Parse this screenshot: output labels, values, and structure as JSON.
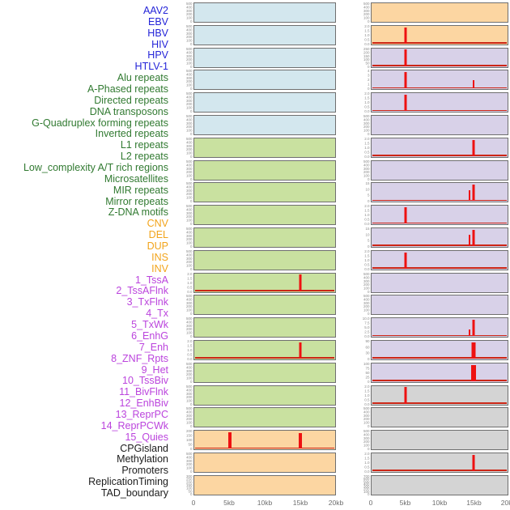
{
  "chart_data": {
    "type": "line",
    "layout": "small-multiples profile plots, 2 columns x 22 rows, labels for all 44 tracks listed left, shared x axis per column, grid off, no legend",
    "x_ticks": [
      "0",
      "5kb",
      "10kb",
      "15kb",
      "20kb"
    ],
    "x_range_kb": [
      0,
      20
    ],
    "colors": {
      "label": {
        "virus": "#2424d8",
        "repeat": "#317a31",
        "sv": "#f2a41b",
        "chromhmm": "#bb44dd",
        "other": "#1c1c1c"
      },
      "panel": {
        "virus": "#d3e7ee",
        "repeat": "#c9e1a0",
        "sv": "#fcd6a2",
        "chromhmm": "#d8d1e8",
        "other": "#d4d4d4"
      },
      "spike": "#ee1111",
      "baseline": "#cc2616",
      "tick_text": "#8a8a8a",
      "axis_text": "#6e6e6e",
      "panel_border": "#6f6f6f"
    },
    "columns": [
      {
        "side": "left",
        "tracks": [
          {
            "name": "AAV2",
            "group": "virus",
            "ymax": 500,
            "y_ticks": [
              "500",
              "400",
              "300",
              "200",
              "100",
              "0"
            ],
            "baseline": false,
            "spikes": []
          },
          {
            "name": "EBV",
            "group": "virus",
            "ymax": 500,
            "y_ticks": [
              "500",
              "400",
              "300",
              "200",
              "100",
              "0"
            ],
            "baseline": false,
            "spikes": []
          },
          {
            "name": "HBV",
            "group": "virus",
            "ymax": 500,
            "y_ticks": [
              "500",
              "400",
              "300",
              "200",
              "100",
              "0"
            ],
            "baseline": false,
            "spikes": []
          },
          {
            "name": "HIV",
            "group": "virus",
            "ymax": 500,
            "y_ticks": [
              "500",
              "400",
              "300",
              "200",
              "100",
              "0"
            ],
            "baseline": false,
            "spikes": []
          },
          {
            "name": "HPV",
            "group": "virus",
            "ymax": 500,
            "y_ticks": [
              "500",
              "400",
              "300",
              "200",
              "100",
              "0"
            ],
            "baseline": false,
            "spikes": []
          },
          {
            "name": "HTLV-1",
            "group": "virus",
            "ymax": 500,
            "y_ticks": [
              "500",
              "400",
              "300",
              "200",
              "100",
              "0"
            ],
            "baseline": false,
            "spikes": []
          },
          {
            "name": "Alu repeats",
            "group": "repeat",
            "ymax": 500,
            "y_ticks": [
              "500",
              "400",
              "300",
              "200",
              "100",
              "0"
            ],
            "baseline": false,
            "spikes": []
          },
          {
            "name": "A-Phased repeats",
            "group": "repeat",
            "ymax": 500,
            "y_ticks": [
              "500",
              "400",
              "300",
              "200",
              "100",
              "0"
            ],
            "baseline": false,
            "spikes": []
          },
          {
            "name": "Directed repeats",
            "group": "repeat",
            "ymax": 500,
            "y_ticks": [
              "500",
              "400",
              "300",
              "200",
              "100",
              "0"
            ],
            "baseline": false,
            "spikes": []
          },
          {
            "name": "DNA transposons",
            "group": "repeat",
            "ymax": 500,
            "y_ticks": [
              "500",
              "400",
              "300",
              "200",
              "100",
              "0"
            ],
            "baseline": false,
            "spikes": []
          },
          {
            "name": "G-Quadruplex forming repeats",
            "group": "repeat",
            "ymax": 500,
            "y_ticks": [
              "500",
              "400",
              "300",
              "200",
              "100",
              "0"
            ],
            "baseline": false,
            "spikes": []
          },
          {
            "name": "Inverted repeats",
            "group": "repeat",
            "ymax": 500,
            "y_ticks": [
              "500",
              "400",
              "300",
              "200",
              "100",
              "0"
            ],
            "baseline": false,
            "spikes": []
          },
          {
            "name": "L1 repeats",
            "group": "repeat",
            "ymax": 2.0,
            "y_ticks": [
              "2.0",
              "1.5",
              "1.0",
              "0.5",
              "0.0"
            ],
            "baseline": true,
            "spikes": [
              {
                "x_kb": 15,
                "value": 2.0,
                "w": 3
              }
            ]
          },
          {
            "name": "L2 repeats",
            "group": "repeat",
            "ymax": 500,
            "y_ticks": [
              "500",
              "400",
              "300",
              "200",
              "100",
              "0"
            ],
            "baseline": false,
            "spikes": []
          },
          {
            "name": "Low_complexity A/T rich regions",
            "group": "repeat",
            "ymax": 500,
            "y_ticks": [
              "500",
              "400",
              "300",
              "200",
              "100",
              "0"
            ],
            "baseline": false,
            "spikes": []
          },
          {
            "name": "Microsatellites",
            "group": "repeat",
            "ymax": 2.0,
            "y_ticks": [
              "2.0",
              "1.5",
              "1.0",
              "0.5",
              "0.0"
            ],
            "baseline": true,
            "spikes": [
              {
                "x_kb": 15,
                "value": 2.0,
                "w": 3
              }
            ]
          },
          {
            "name": "MIR repeats",
            "group": "repeat",
            "ymax": 500,
            "y_ticks": [
              "500",
              "400",
              "300",
              "200",
              "100",
              "0"
            ],
            "baseline": false,
            "spikes": []
          },
          {
            "name": "Mirror repeats",
            "group": "repeat",
            "ymax": 500,
            "y_ticks": [
              "500",
              "400",
              "300",
              "200",
              "100",
              "0"
            ],
            "baseline": false,
            "spikes": []
          },
          {
            "name": "Z-DNA motifs",
            "group": "repeat",
            "ymax": 500,
            "y_ticks": [
              "500",
              "400",
              "300",
              "200",
              "100",
              "0"
            ],
            "baseline": false,
            "spikes": []
          },
          {
            "name": "CNV",
            "group": "sv",
            "ymax": 200,
            "y_ticks": [
              "200",
              "150",
              "100",
              "50",
              "0"
            ],
            "baseline": true,
            "spikes": [
              {
                "x_kb": 5,
                "value": 205,
                "w": 4
              },
              {
                "x_kb": 15,
                "value": 185,
                "w": 4
              }
            ]
          },
          {
            "name": "DEL",
            "group": "sv",
            "ymax": 500,
            "y_ticks": [
              "500",
              "400",
              "300",
              "200",
              "100",
              "0"
            ],
            "baseline": false,
            "spikes": []
          },
          {
            "name": "DUP",
            "group": "sv",
            "ymax": 300,
            "y_ticks": [
              "300",
              "250",
              "200",
              "150",
              "100",
              "50",
              "0"
            ],
            "baseline": false,
            "spikes": []
          }
        ]
      },
      {
        "side": "right",
        "tracks": [
          {
            "name": "INS",
            "group": "sv",
            "ymax": 500,
            "y_ticks": [
              "500",
              "400",
              "300",
              "200",
              "100",
              "0"
            ],
            "baseline": false,
            "spikes": []
          },
          {
            "name": "INV",
            "group": "sv",
            "ymax": 2.0,
            "y_ticks": [
              "2.0",
              "1.5",
              "1.0",
              "0.5",
              "0.0"
            ],
            "baseline": true,
            "spikes": [
              {
                "x_kb": 5,
                "value": 2.0,
                "w": 3
              }
            ]
          },
          {
            "name": "1_TssA",
            "group": "chromhmm",
            "ymax": 250,
            "y_ticks": [
              "250",
              "200",
              "150",
              "100",
              "50",
              "0"
            ],
            "baseline": true,
            "spikes": [
              {
                "x_kb": 5,
                "value": 250,
                "w": 3
              }
            ]
          },
          {
            "name": "2_TssAFlnk",
            "group": "chromhmm",
            "ymax": 4,
            "y_ticks": [
              "4",
              "3",
              "2",
              "1",
              "0"
            ],
            "baseline": true,
            "spikes": [
              {
                "x_kb": 5,
                "value": 4,
                "w": 3
              },
              {
                "x_kb": 15,
                "value": 2,
                "w": 2
              }
            ]
          },
          {
            "name": "3_TxFlnk",
            "group": "chromhmm",
            "ymax": 2.0,
            "y_ticks": [
              "2.0",
              "1.5",
              "1.0",
              "0.5",
              "0.0"
            ],
            "baseline": true,
            "spikes": [
              {
                "x_kb": 5,
                "value": 2.0,
                "w": 3
              }
            ]
          },
          {
            "name": "4_Tx",
            "group": "chromhmm",
            "ymax": 500,
            "y_ticks": [
              "500",
              "400",
              "300",
              "200",
              "100",
              "0"
            ],
            "baseline": false,
            "spikes": []
          },
          {
            "name": "5_TxWk",
            "group": "chromhmm",
            "ymax": 2.0,
            "y_ticks": [
              "2.0",
              "1.5",
              "1.0",
              "0.5",
              "0.0"
            ],
            "baseline": true,
            "spikes": [
              {
                "x_kb": 15,
                "value": 2.0,
                "w": 3
              }
            ]
          },
          {
            "name": "6_EnhG",
            "group": "chromhmm",
            "ymax": 500,
            "y_ticks": [
              "500",
              "400",
              "300",
              "200",
              "100",
              "0"
            ],
            "baseline": false,
            "spikes": []
          },
          {
            "name": "7_Enh",
            "group": "chromhmm",
            "ymax": 15,
            "y_ticks": [
              "15",
              "10",
              "5",
              "0"
            ],
            "baseline": true,
            "spikes": [
              {
                "x_kb": 14.4,
                "value": 10,
                "w": 2
              },
              {
                "x_kb": 15,
                "value": 15,
                "w": 3
              }
            ]
          },
          {
            "name": "8_ZNF_Rpts",
            "group": "chromhmm",
            "ymax": 2.0,
            "y_ticks": [
              "2.0",
              "1.5",
              "1.0",
              "0.5",
              "0.0"
            ],
            "baseline": true,
            "spikes": [
              {
                "x_kb": 5,
                "value": 2.0,
                "w": 3
              }
            ]
          },
          {
            "name": "9_Het",
            "group": "chromhmm",
            "ymax": 15,
            "y_ticks": [
              "15",
              "10",
              "5",
              "0"
            ],
            "baseline": true,
            "spikes": [
              {
                "x_kb": 14.4,
                "value": 10.5,
                "w": 2
              },
              {
                "x_kb": 15,
                "value": 15,
                "w": 3
              }
            ]
          },
          {
            "name": "10_TssBiv",
            "group": "chromhmm",
            "ymax": 2.0,
            "y_ticks": [
              "2.0",
              "1.5",
              "1.0",
              "0.5",
              "0.0"
            ],
            "baseline": true,
            "spikes": [
              {
                "x_kb": 5,
                "value": 2.0,
                "w": 3
              }
            ]
          },
          {
            "name": "11_BivFlnk",
            "group": "chromhmm",
            "ymax": 500,
            "y_ticks": [
              "500",
              "400",
              "300",
              "200",
              "100",
              "0"
            ],
            "baseline": false,
            "spikes": []
          },
          {
            "name": "12_EnhBiv",
            "group": "chromhmm",
            "ymax": 500,
            "y_ticks": [
              "500",
              "400",
              "300",
              "200",
              "100",
              "0"
            ],
            "baseline": false,
            "spikes": []
          },
          {
            "name": "13_ReprPC",
            "group": "chromhmm",
            "ymax": 10.0,
            "y_ticks": [
              "10.0",
              "7.5",
              "5.0",
              "2.5",
              "0.0"
            ],
            "baseline": true,
            "spikes": [
              {
                "x_kb": 14.4,
                "value": 4.2,
                "w": 2
              },
              {
                "x_kb": 15,
                "value": 10,
                "w": 3
              }
            ]
          },
          {
            "name": "14_ReprPCWk",
            "group": "chromhmm",
            "ymax": 90,
            "y_ticks": [
              "90",
              "60",
              "30",
              "0"
            ],
            "baseline": true,
            "spikes": [
              {
                "x_kb": 15,
                "value": 92,
                "w": 5
              }
            ]
          },
          {
            "name": "15_Quies",
            "group": "chromhmm",
            "ymax": 100,
            "y_ticks": [
              "100",
              "75",
              "50",
              "25",
              "0"
            ],
            "baseline": true,
            "spikes": [
              {
                "x_kb": 15,
                "value": 102,
                "w": 6
              }
            ]
          },
          {
            "name": "CPGisland",
            "group": "other",
            "ymax": 2.0,
            "y_ticks": [
              "2.0",
              "1.5",
              "1.0",
              "0.5",
              "0.0"
            ],
            "baseline": true,
            "spikes": [
              {
                "x_kb": 5,
                "value": 2.0,
                "w": 3
              }
            ]
          },
          {
            "name": "Methylation",
            "group": "other",
            "ymax": 500,
            "y_ticks": [
              "500",
              "400",
              "300",
              "200",
              "100",
              "0"
            ],
            "baseline": false,
            "spikes": []
          },
          {
            "name": "Promoters",
            "group": "other",
            "ymax": 500,
            "y_ticks": [
              "500",
              "400",
              "300",
              "200",
              "100",
              "0"
            ],
            "baseline": false,
            "spikes": []
          },
          {
            "name": "ReplicationTiming",
            "group": "other",
            "ymax": 2.0,
            "y_ticks": [
              "2.0",
              "1.5",
              "1.0",
              "0.5",
              "0.0"
            ],
            "baseline": true,
            "spikes": [
              {
                "x_kb": 15,
                "value": 2.0,
                "w": 3
              }
            ]
          },
          {
            "name": "TAD_boundary",
            "group": "other",
            "ymax": 700,
            "y_ticks": [
              "700",
              "600",
              "500",
              "400",
              "300",
              "200",
              "100",
              "0"
            ],
            "baseline": false,
            "spikes": []
          }
        ]
      }
    ]
  }
}
